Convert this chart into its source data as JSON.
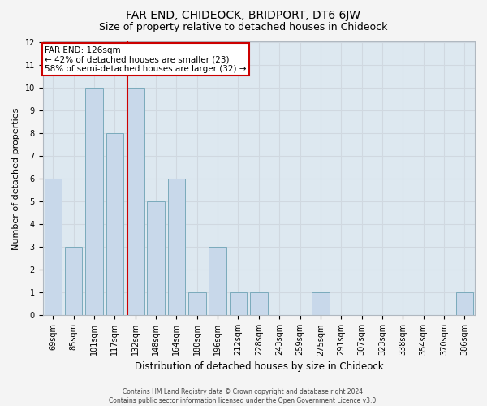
{
  "title": "FAR END, CHIDEOCK, BRIDPORT, DT6 6JW",
  "subtitle": "Size of property relative to detached houses in Chideock",
  "xlabel": "Distribution of detached houses by size in Chideock",
  "ylabel": "Number of detached properties",
  "categories": [
    "69sqm",
    "85sqm",
    "101sqm",
    "117sqm",
    "132sqm",
    "148sqm",
    "164sqm",
    "180sqm",
    "196sqm",
    "212sqm",
    "228sqm",
    "243sqm",
    "259sqm",
    "275sqm",
    "291sqm",
    "307sqm",
    "323sqm",
    "338sqm",
    "354sqm",
    "370sqm",
    "386sqm"
  ],
  "values": [
    6,
    3,
    10,
    8,
    10,
    5,
    6,
    1,
    3,
    1,
    1,
    0,
    0,
    1,
    0,
    0,
    0,
    0,
    0,
    0,
    1
  ],
  "bar_color": "#c8d8ea",
  "bar_edge_color": "#7aaabb",
  "ylim": [
    0,
    12
  ],
  "yticks": [
    0,
    1,
    2,
    3,
    4,
    5,
    6,
    7,
    8,
    9,
    10,
    11,
    12
  ],
  "red_line_xindex": 3.6,
  "property_label": "FAR END: 126sqm",
  "annotation_line1": "← 42% of detached houses are smaller (23)",
  "annotation_line2": "58% of semi-detached houses are larger (32) →",
  "red_line_color": "#cc0000",
  "annotation_box_facecolor": "#ffffff",
  "annotation_box_edgecolor": "#cc0000",
  "grid_color": "#d0d8e0",
  "plot_bg_color": "#dde8f0",
  "fig_bg_color": "#f4f4f4",
  "footer_line1": "Contains HM Land Registry data © Crown copyright and database right 2024.",
  "footer_line2": "Contains public sector information licensed under the Open Government Licence v3.0.",
  "title_fontsize": 10,
  "subtitle_fontsize": 9,
  "tick_fontsize": 7,
  "ylabel_fontsize": 8,
  "xlabel_fontsize": 8.5,
  "annotation_fontsize": 7.5,
  "footer_fontsize": 5.5
}
